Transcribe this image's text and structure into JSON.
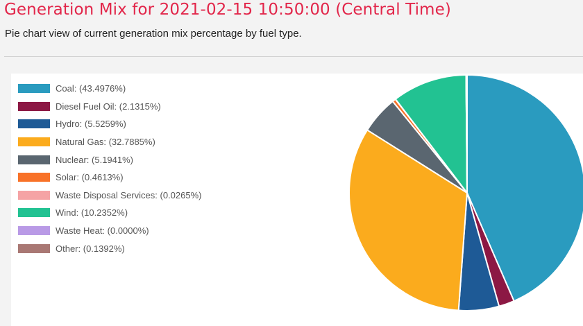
{
  "header": {
    "title": "Generation Mix for 2021-02-15 10:50:00 (Central Time)",
    "subtitle": "Pie chart view of current generation mix percentage by fuel type."
  },
  "chart_data": {
    "type": "pie",
    "title": "",
    "legend_position": "left",
    "slices": [
      {
        "label": "Coal",
        "value": 43.4976,
        "legend": "Coal: (43.4976%)",
        "color": "#2a9bbf"
      },
      {
        "label": "Diesel Fuel Oil",
        "value": 2.1315,
        "legend": "Diesel Fuel Oil: (2.1315%)",
        "color": "#8c1844"
      },
      {
        "label": "Hydro",
        "value": 5.5259,
        "legend": "Hydro: (5.5259%)",
        "color": "#1e5a96"
      },
      {
        "label": "Natural Gas",
        "value": 32.7885,
        "legend": "Natural Gas: (32.7885%)",
        "color": "#fbab1d"
      },
      {
        "label": "Nuclear",
        "value": 5.1941,
        "legend": "Nuclear: (5.1941%)",
        "color": "#5a6670"
      },
      {
        "label": "Solar",
        "value": 0.4613,
        "legend": "Solar: (0.4613%)",
        "color": "#f87228"
      },
      {
        "label": "Waste Disposal Services",
        "value": 0.0265,
        "legend": "Waste Disposal Services: (0.0265%)",
        "color": "#f5a3a5"
      },
      {
        "label": "Wind",
        "value": 10.2352,
        "legend": "Wind: (10.2352%)",
        "color": "#22c292"
      },
      {
        "label": "Waste Heat",
        "value": 0.0,
        "legend": "Waste Heat: (0.0000%)",
        "color": "#b99ae6"
      },
      {
        "label": "Other",
        "value": 0.1392,
        "legend": "Other: (0.1392%)",
        "color": "#a97874"
      }
    ]
  }
}
